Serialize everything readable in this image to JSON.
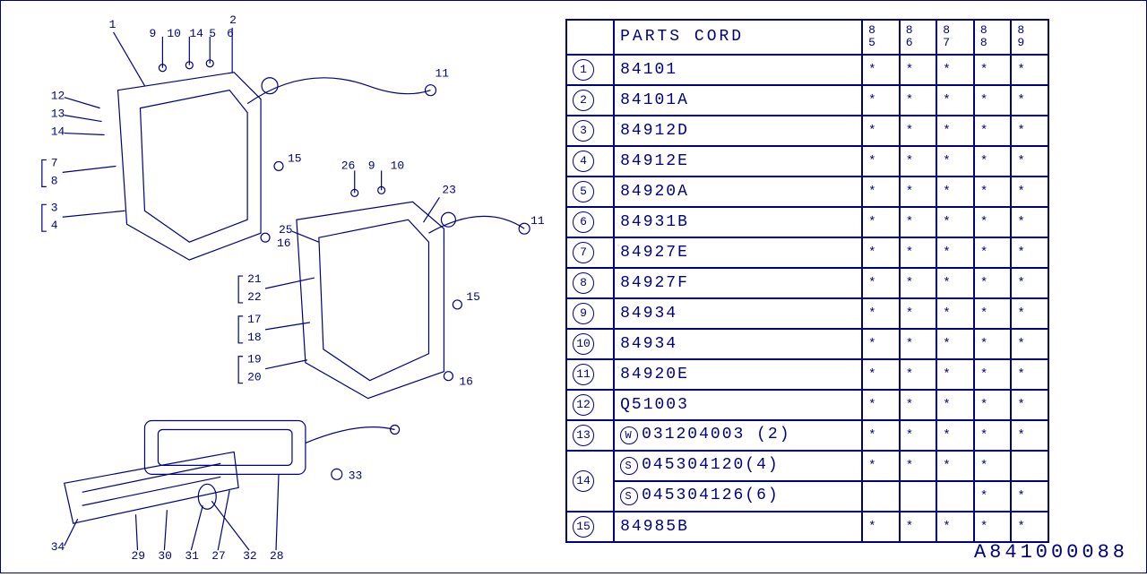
{
  "table": {
    "header": {
      "idx": "",
      "parts": "PARTS CORD",
      "years": [
        "85",
        "86",
        "87",
        "88",
        "89"
      ]
    },
    "rows": [
      {
        "idx": "1",
        "code": "84101",
        "marks": [
          "*",
          "*",
          "*",
          "*",
          "*"
        ]
      },
      {
        "idx": "2",
        "code": "84101A",
        "marks": [
          "*",
          "*",
          "*",
          "*",
          "*"
        ]
      },
      {
        "idx": "3",
        "code": "84912D",
        "marks": [
          "*",
          "*",
          "*",
          "*",
          "*"
        ]
      },
      {
        "idx": "4",
        "code": "84912E",
        "marks": [
          "*",
          "*",
          "*",
          "*",
          "*"
        ]
      },
      {
        "idx": "5",
        "code": "84920A",
        "marks": [
          "*",
          "*",
          "*",
          "*",
          "*"
        ]
      },
      {
        "idx": "6",
        "code": "84931B",
        "marks": [
          "*",
          "*",
          "*",
          "*",
          "*"
        ]
      },
      {
        "idx": "7",
        "code": "84927E",
        "marks": [
          "*",
          "*",
          "*",
          "*",
          "*"
        ]
      },
      {
        "idx": "8",
        "code": "84927F",
        "marks": [
          "*",
          "*",
          "*",
          "*",
          "*"
        ]
      },
      {
        "idx": "9",
        "code": "84934",
        "marks": [
          "*",
          "*",
          "*",
          "*",
          "*"
        ]
      },
      {
        "idx": "10",
        "code": "84934",
        "marks": [
          "*",
          "*",
          "*",
          "*",
          "*"
        ]
      },
      {
        "idx": "11",
        "code": "84920E",
        "marks": [
          "*",
          "*",
          "*",
          "*",
          "*"
        ]
      },
      {
        "idx": "12",
        "code": "Q51003",
        "marks": [
          "*",
          "*",
          "*",
          "*",
          "*"
        ]
      },
      {
        "idx": "13",
        "prefix": "W",
        "code": "031204003 (2)",
        "marks": [
          "*",
          "*",
          "*",
          "*",
          "*"
        ]
      },
      {
        "idx": "14",
        "prefix": "S",
        "code": "045304120(4)",
        "marks": [
          "*",
          "*",
          "*",
          "*",
          ""
        ],
        "rowspan": 2
      },
      {
        "idx": "",
        "prefix": "S",
        "code": "045304126(6)",
        "marks": [
          "",
          "",
          "",
          "*",
          "*"
        ]
      },
      {
        "idx": "15",
        "code": "84985B",
        "marks": [
          "*",
          "*",
          "*",
          "*",
          "*"
        ]
      }
    ]
  },
  "footer": "A841000088",
  "diagram": {
    "callouts_top": [
      "1",
      "2",
      "9",
      "10",
      "14",
      "5",
      "6",
      "11"
    ],
    "callouts_left": [
      "12",
      "13",
      "14",
      "7",
      "8",
      "3",
      "4"
    ],
    "callouts_mid": [
      "15",
      "16",
      "23",
      "25",
      "26",
      "21",
      "22",
      "17",
      "18",
      "19",
      "20"
    ],
    "callouts_bottom": [
      "27",
      "28",
      "29",
      "30",
      "31",
      "32",
      "33",
      "34"
    ]
  },
  "colors": {
    "line": "#000080",
    "bg": "#ffffff"
  }
}
